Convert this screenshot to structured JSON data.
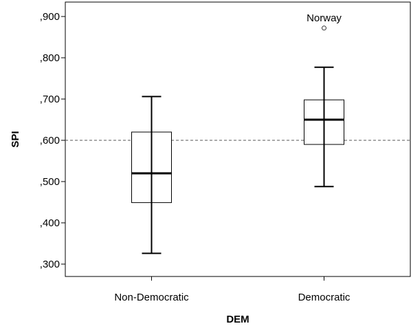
{
  "chart_data": {
    "type": "box",
    "xlabel": "DEM",
    "ylabel": "SPI",
    "ylim": [
      0.27,
      0.935
    ],
    "yticks": [
      {
        "value": 0.3,
        "label": ",300"
      },
      {
        "value": 0.4,
        "label": ",400"
      },
      {
        "value": 0.5,
        "label": ",500"
      },
      {
        "value": 0.6,
        "label": ",600"
      },
      {
        "value": 0.7,
        "label": ",700"
      },
      {
        "value": 0.8,
        "label": ",800"
      },
      {
        "value": 0.9,
        "label": ",900"
      }
    ],
    "categories": [
      "Non-Democratic",
      "Democratic"
    ],
    "boxes": [
      {
        "category": "Non-Democratic",
        "whisker_low": 0.326,
        "q1": 0.449,
        "median": 0.52,
        "q3": 0.62,
        "whisker_high": 0.706,
        "outliers": []
      },
      {
        "category": "Democratic",
        "whisker_low": 0.488,
        "q1": 0.59,
        "median": 0.65,
        "q3": 0.698,
        "whisker_high": 0.777,
        "outliers": [
          {
            "value": 0.872,
            "label": "Norway"
          }
        ]
      }
    ],
    "reference_line": {
      "value": 0.6,
      "style": "dashed"
    },
    "grid": false,
    "legend": "none"
  }
}
